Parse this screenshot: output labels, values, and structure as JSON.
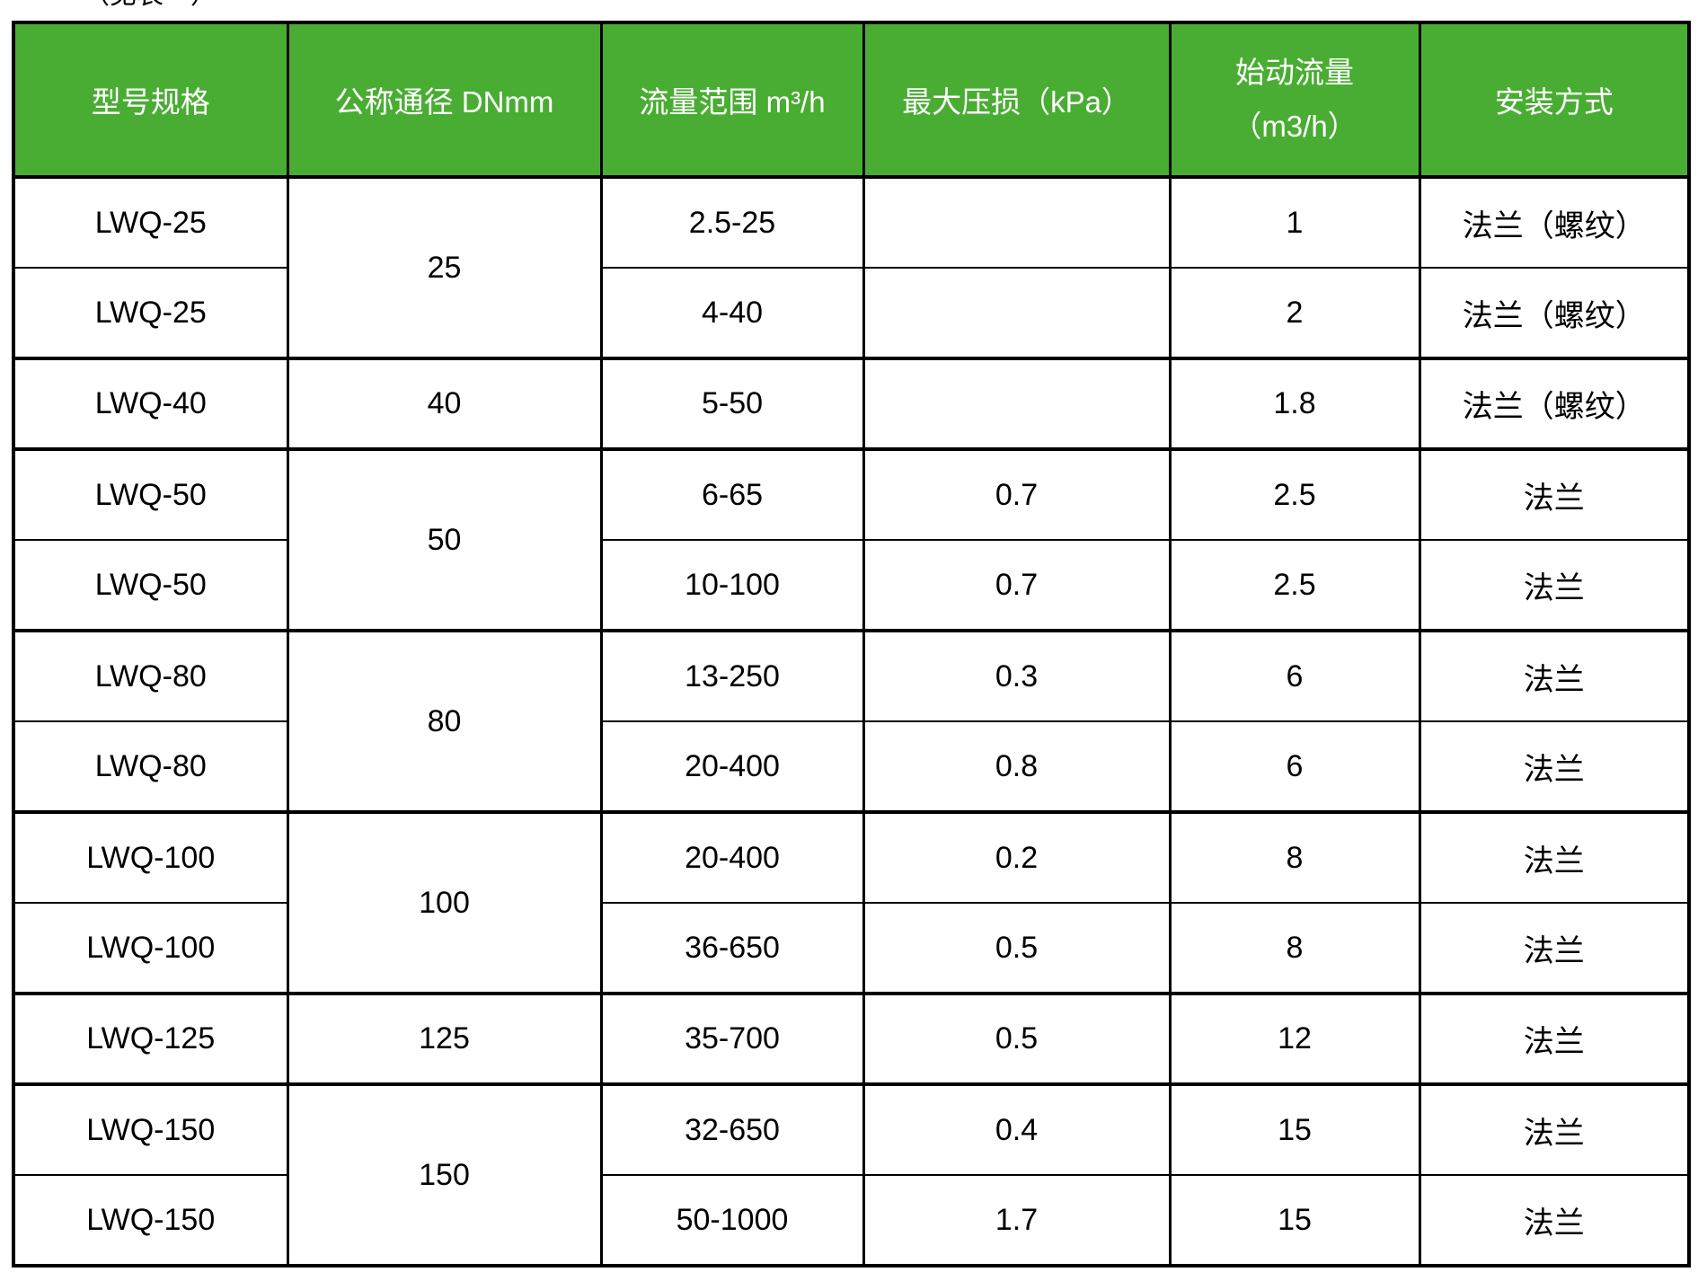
{
  "page": {
    "label_above_table": "（见表一）"
  },
  "colors": {
    "header_bg": "#4AAD33",
    "header_text": "#FFFFFF",
    "border": "#000000",
    "body_text": "#000000"
  },
  "table": {
    "headers": [
      "型号规格",
      "公称通径 DNmm",
      "流量范围 m³/h",
      "最大压损（kPa）",
      "始动流量\n（m3/h）",
      "安装方式"
    ],
    "rows": [
      {
        "model": "LWQ-25",
        "dn": {
          "text": "25",
          "rowspan": 2
        },
        "range": "2.5-25",
        "pressure": "",
        "start": "1",
        "install": "法兰（螺纹）"
      },
      {
        "model": "LWQ-25",
        "range": "4-40",
        "pressure": "",
        "start": "2",
        "install": "法兰（螺纹）"
      },
      {
        "model": "LWQ-40",
        "dn": {
          "text": "40",
          "rowspan": 1
        },
        "range": "5-50",
        "pressure": "",
        "start": "1.8",
        "install": "法兰（螺纹）"
      },
      {
        "model": "LWQ-50",
        "dn": {
          "text": "50",
          "rowspan": 2
        },
        "range": "6-65",
        "pressure": "0.7",
        "start": "2.5",
        "install": "法兰"
      },
      {
        "model": "LWQ-50",
        "range": "10-100",
        "pressure": "0.7",
        "start": "2.5",
        "install": "法兰"
      },
      {
        "model": "LWQ-80",
        "dn": {
          "text": "80",
          "rowspan": 2
        },
        "range": "13-250",
        "pressure": "0.3",
        "start": "6",
        "install": "法兰"
      },
      {
        "model": "LWQ-80",
        "range": "20-400",
        "pressure": "0.8",
        "start": "6",
        "install": "法兰"
      },
      {
        "model": "LWQ-100",
        "dn": {
          "text": "100",
          "rowspan": 2
        },
        "range": "20-400",
        "pressure": "0.2",
        "start": "8",
        "install": "法兰"
      },
      {
        "model": "LWQ-100",
        "range": "36-650",
        "pressure": "0.5",
        "start": "8",
        "install": "法兰"
      },
      {
        "model": "LWQ-125",
        "dn": {
          "text": "125",
          "rowspan": 1
        },
        "range": "35-700",
        "pressure": "0.5",
        "start": "12",
        "install": "法兰"
      },
      {
        "model": "LWQ-150",
        "dn": {
          "text": "150",
          "rowspan": 2
        },
        "range": "32-650",
        "pressure": "0.4",
        "start": "15",
        "install": "法兰"
      },
      {
        "model": "LWQ-150",
        "range": "50-1000",
        "pressure": "1.7",
        "start": "15",
        "install": "法兰"
      }
    ]
  }
}
